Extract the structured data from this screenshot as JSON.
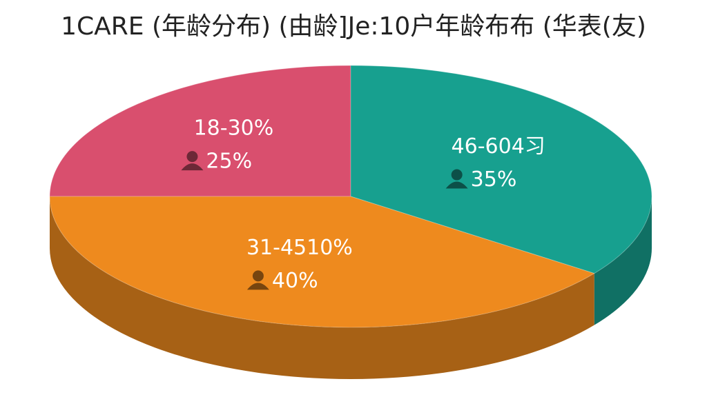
{
  "chart_data": {
    "type": "pie3d",
    "title": "1CARE (年龄分布) (由龄]Je:10户年龄布布 (华表(友)",
    "categories": [
      "18-30%",
      "46-604习",
      "31-4510%"
    ],
    "values": [
      25,
      35,
      40
    ],
    "value_labels": [
      "25%",
      "35%",
      "40%"
    ],
    "colors": [
      "#d94f6e",
      "#17a08f",
      "#ee8a1e"
    ]
  }
}
